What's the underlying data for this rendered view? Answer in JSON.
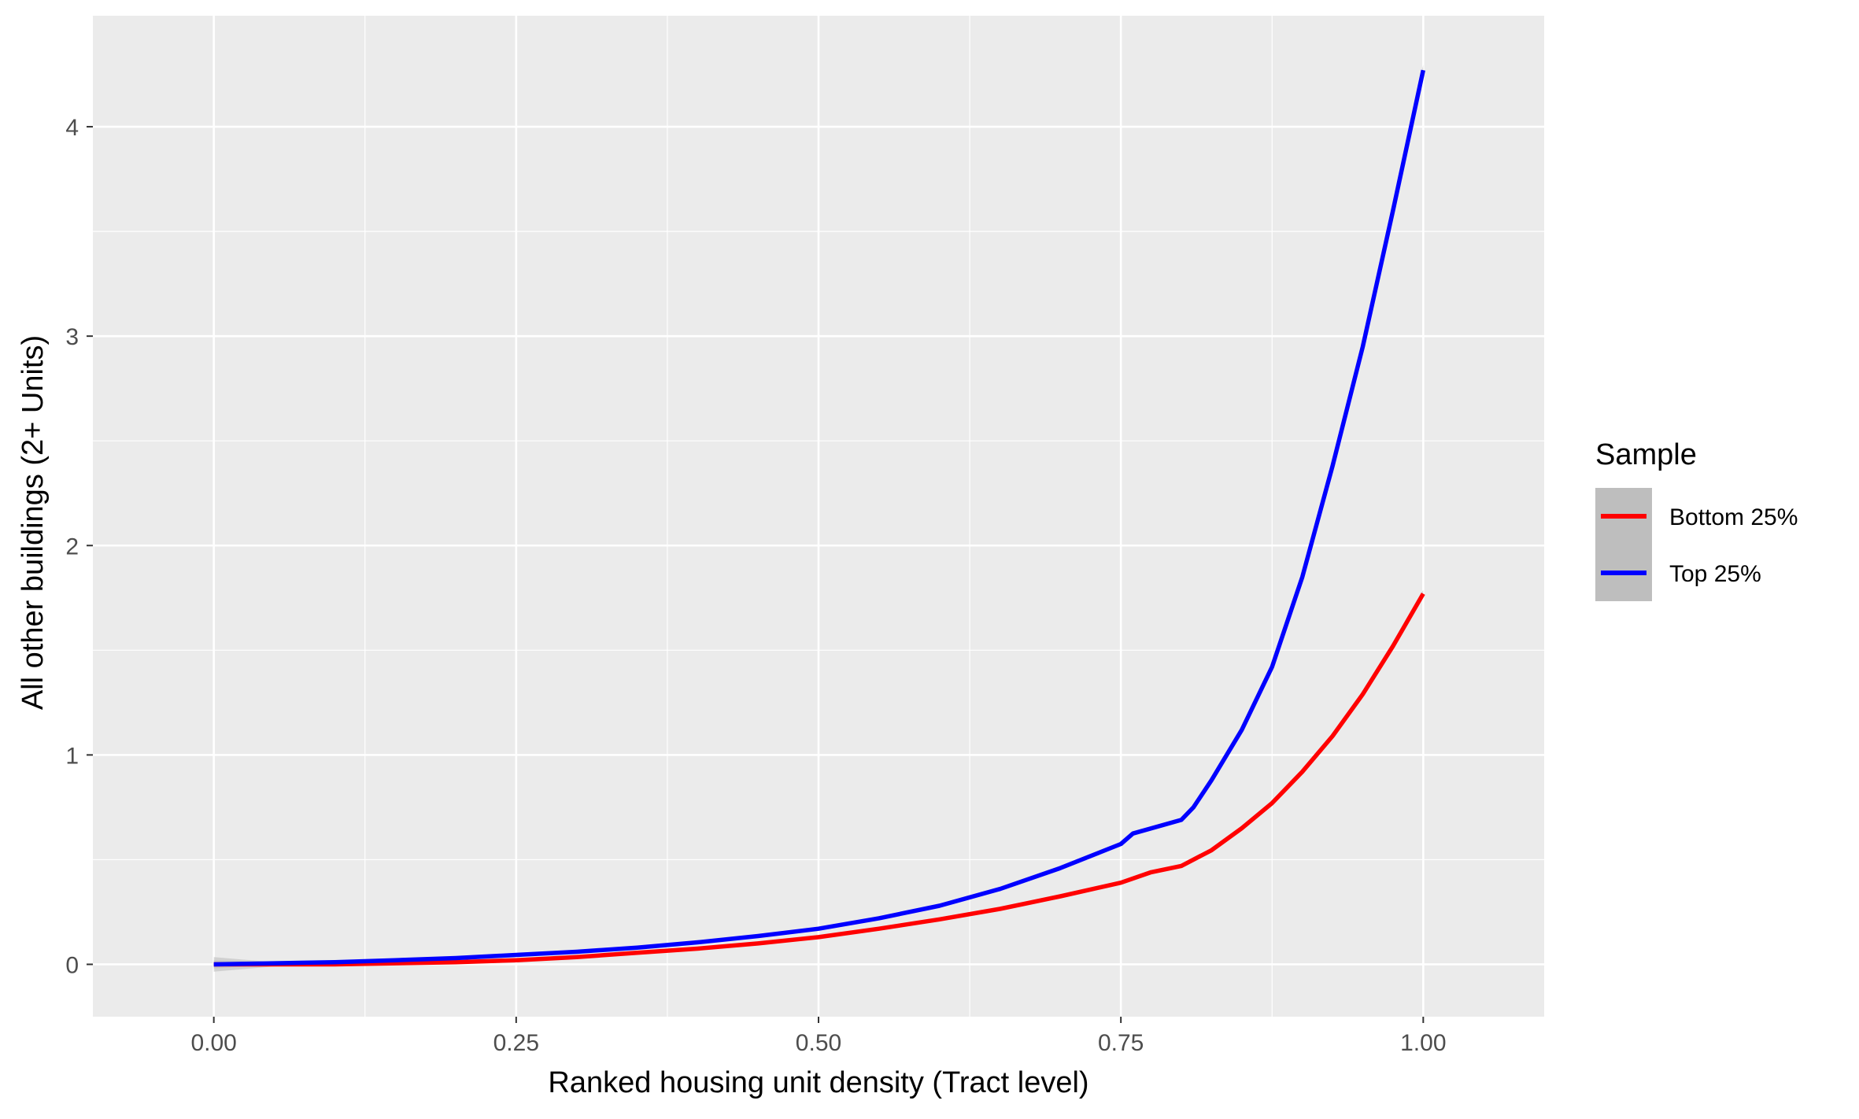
{
  "chart_data": {
    "type": "line",
    "title": "",
    "xlabel": "Ranked housing unit density (Tract level)",
    "ylabel": "All other buildings (2+ Units)",
    "xlim": [
      -0.1,
      1.1
    ],
    "ylim": [
      -0.25,
      4.53
    ],
    "x_ticks": [
      0.0,
      0.25,
      0.5,
      0.75,
      1.0
    ],
    "x_tick_labels": [
      "0.00",
      "0.25",
      "0.50",
      "0.75",
      "1.00"
    ],
    "y_ticks": [
      0,
      1,
      2,
      3,
      4
    ],
    "y_tick_labels": [
      "0",
      "1",
      "2",
      "3",
      "4"
    ],
    "grid": true,
    "legend": {
      "title": "Sample",
      "position": "right",
      "entries": [
        {
          "label": "Bottom 25%",
          "color": "#ff0000"
        },
        {
          "label": "Top 25%",
          "color": "#0000ff"
        }
      ]
    },
    "colors": {
      "panel": "#ebebeb",
      "grid": "#ffffff",
      "ribbon": "#bebebe",
      "legend_key": "#bebebe"
    },
    "series": [
      {
        "name": "Bottom 25%",
        "color": "#ff0000",
        "x": [
          0.0,
          0.05,
          0.1,
          0.15,
          0.2,
          0.25,
          0.3,
          0.35,
          0.4,
          0.45,
          0.5,
          0.55,
          0.6,
          0.65,
          0.7,
          0.75,
          0.775,
          0.8,
          0.825,
          0.85,
          0.875,
          0.9,
          0.925,
          0.95,
          0.975,
          1.0
        ],
        "y": [
          0.0,
          0.0,
          0.0,
          0.005,
          0.01,
          0.02,
          0.035,
          0.055,
          0.075,
          0.1,
          0.13,
          0.17,
          0.215,
          0.265,
          0.325,
          0.39,
          0.44,
          0.47,
          0.545,
          0.65,
          0.77,
          0.92,
          1.09,
          1.29,
          1.52,
          1.77
        ],
        "band": [
          0.035,
          0.01,
          0.005,
          0.004,
          0.004,
          0.004,
          0.004,
          0.004,
          0.004,
          0.004,
          0.004,
          0.005,
          0.005,
          0.005,
          0.006,
          0.007,
          0.008,
          0.009,
          0.01,
          0.011,
          0.012,
          0.013,
          0.014,
          0.015,
          0.016,
          0.018
        ]
      },
      {
        "name": "Top 25%",
        "color": "#0000ff",
        "x": [
          0.0,
          0.05,
          0.1,
          0.15,
          0.2,
          0.25,
          0.3,
          0.35,
          0.4,
          0.45,
          0.5,
          0.55,
          0.6,
          0.65,
          0.7,
          0.75,
          0.76,
          0.8,
          0.81,
          0.825,
          0.85,
          0.875,
          0.9,
          0.925,
          0.95,
          0.975,
          1.0
        ],
        "y": [
          0.0,
          0.005,
          0.01,
          0.02,
          0.03,
          0.045,
          0.06,
          0.08,
          0.105,
          0.135,
          0.17,
          0.22,
          0.28,
          0.36,
          0.46,
          0.575,
          0.625,
          0.69,
          0.75,
          0.88,
          1.12,
          1.42,
          1.85,
          2.38,
          2.95,
          3.6,
          4.27
        ],
        "band": [
          0.02,
          0.006,
          0.004,
          0.004,
          0.004,
          0.004,
          0.004,
          0.004,
          0.004,
          0.005,
          0.005,
          0.005,
          0.006,
          0.006,
          0.007,
          0.008,
          0.009,
          0.01,
          0.011,
          0.012,
          0.014,
          0.016,
          0.018,
          0.02,
          0.022,
          0.024,
          0.026
        ]
      }
    ]
  }
}
